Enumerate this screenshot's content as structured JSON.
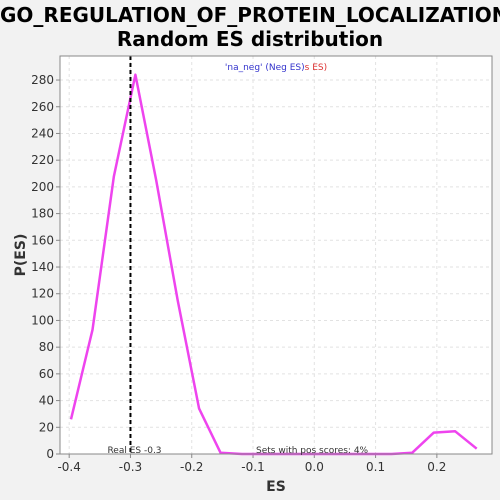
{
  "chart_data": {
    "type": "line",
    "title_line1": "GO_REGULATION_OF_PROTEIN_LOCALIZATION:",
    "title_line2": "Random ES distribution",
    "xlabel": "ES",
    "ylabel": "P(ES)",
    "xlim": [
      -0.415,
      0.29
    ],
    "ylim": [
      0,
      298
    ],
    "xticks": [
      -0.4,
      -0.3,
      -0.2,
      -0.1,
      0.0,
      0.1,
      0.2
    ],
    "xtick_labels": [
      "-0.4",
      "-0.3",
      "-0.2",
      "-0.1",
      "0.0",
      "0.1",
      "0.2"
    ],
    "yticks": [
      0,
      20,
      40,
      60,
      80,
      100,
      120,
      140,
      160,
      180,
      200,
      220,
      240,
      260,
      280
    ],
    "grid": true,
    "series": [
      {
        "color": "#ee44ee",
        "x": [
          -0.397,
          -0.362,
          -0.327,
          -0.292,
          -0.258,
          -0.223,
          -0.188,
          -0.153,
          -0.118,
          -0.084,
          -0.049,
          -0.014,
          0.021,
          0.056,
          0.091,
          0.126,
          0.16,
          0.195,
          0.23,
          0.265
        ],
        "y": [
          26,
          93,
          208,
          284,
          205,
          115,
          34,
          1,
          0,
          0,
          0,
          0,
          0,
          0,
          0,
          0,
          1,
          16,
          17,
          4
        ]
      }
    ],
    "legend": {
      "placement": "top-center",
      "part1": "'na_neg' (Neg ES)",
      "part1_color": "#3333cc",
      "part2": "s ES)",
      "part2_color": "#dd3333"
    },
    "real_es": {
      "value": -0.3,
      "label": "Real ES -0.3",
      "color": "#000000"
    },
    "annotation": "Sets with pos scores: 4%"
  }
}
